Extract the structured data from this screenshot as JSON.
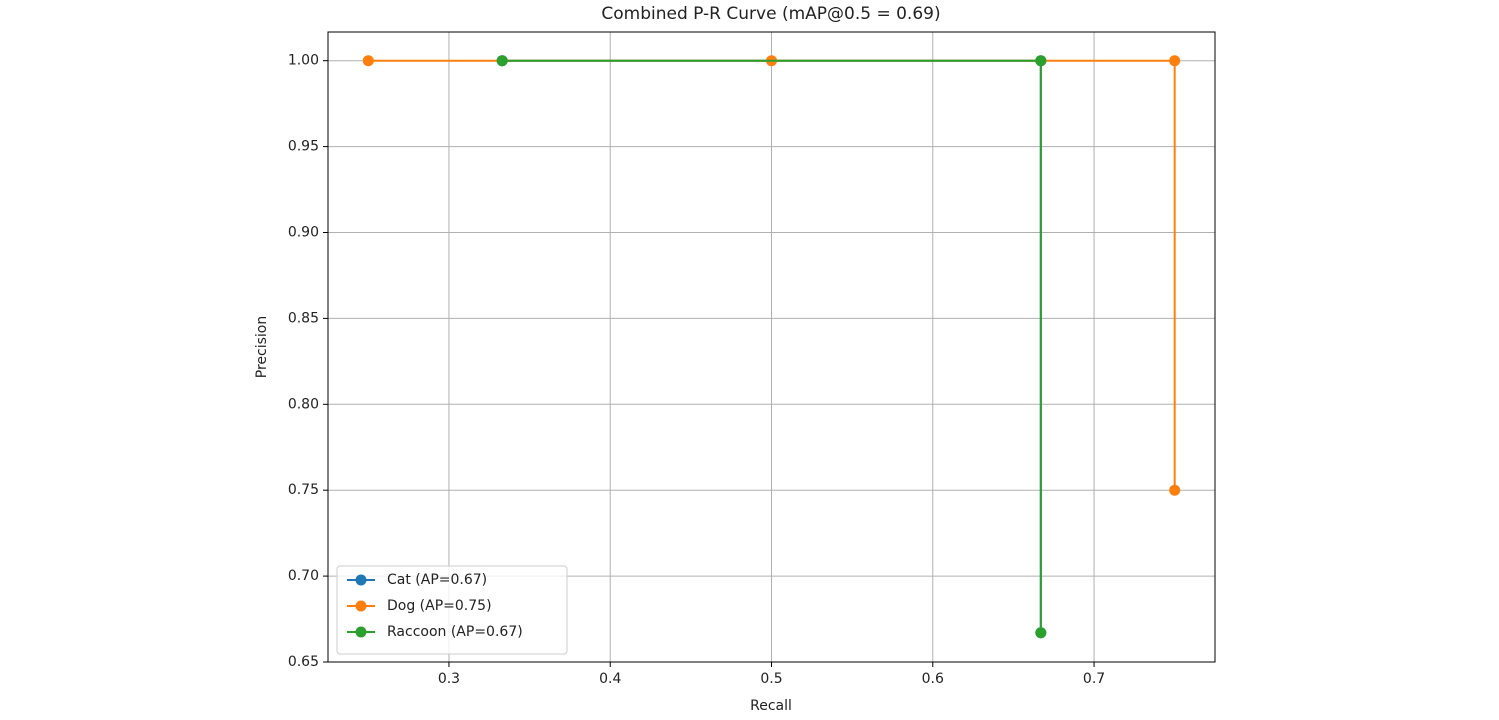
{
  "chart_data": {
    "type": "line",
    "title": "Combined P-R Curve (mAP@0.5 = 0.69)",
    "x_label": "Recall",
    "y_label": "Precision",
    "xlim": [
      0.225,
      0.775
    ],
    "ylim": [
      0.65,
      1.0167
    ],
    "xticks": [
      0.3,
      0.4,
      0.5,
      0.6,
      0.7
    ],
    "yticks": [
      {
        "value": 0.65,
        "label": "0.65"
      },
      {
        "value": 0.7,
        "label": "0.70"
      },
      {
        "value": 0.75,
        "label": "0.75"
      },
      {
        "value": 0.8,
        "label": "0.80"
      },
      {
        "value": 0.85,
        "label": "0.85"
      },
      {
        "value": 0.9,
        "label": "0.90"
      },
      {
        "value": 0.95,
        "label": "0.95"
      },
      {
        "value": 1.0,
        "label": "1.00"
      }
    ],
    "grid": true,
    "legend_position": "lower-left",
    "series": [
      {
        "name": "Cat (AP=0.67)",
        "color": "#1f77b4",
        "x": [
          0.333,
          0.667,
          0.667
        ],
        "values": [
          1.0,
          1.0,
          0.667
        ]
      },
      {
        "name": "Dog (AP=0.75)",
        "color": "#ff7f0e",
        "x": [
          0.25,
          0.5,
          0.75,
          0.75
        ],
        "values": [
          1.0,
          1.0,
          1.0,
          0.75
        ]
      },
      {
        "name": "Raccoon (AP=0.67)",
        "color": "#2ca02c",
        "x": [
          0.333,
          0.667,
          0.667
        ],
        "values": [
          1.0,
          1.0,
          0.667
        ]
      }
    ]
  }
}
